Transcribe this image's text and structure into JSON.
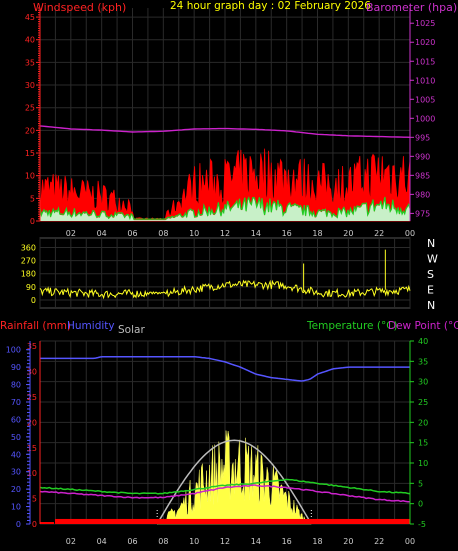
{
  "chart_data": [
    {
      "type": "line",
      "title": "24 hour graph day : 02 February 2026",
      "ylabel_left": "Windspeed (kph)",
      "ylabel_right": "Barometer (hpa)",
      "x_ticks": [
        "02",
        "04",
        "06",
        "08",
        "10",
        "12",
        "14",
        "16",
        "18",
        "20",
        "22",
        "00"
      ],
      "y_left_ticks": [
        0,
        5,
        10,
        15,
        20,
        25,
        30,
        35,
        40,
        45
      ],
      "ylim_left": [
        0,
        47
      ],
      "y_right_ticks": [
        975,
        980,
        985,
        990,
        995,
        1000,
        1005,
        1010,
        1015,
        1020,
        1025
      ],
      "ylim_right": [
        973,
        1029
      ],
      "grid": true,
      "colors": {
        "gust": "#ff0000",
        "wind": "#22cc22",
        "wind_fill": "#c8f0c8",
        "barometer": "#cc22cc",
        "text_left": "#ff2222",
        "text_right": "#cc33cc",
        "title": "#ffff00"
      },
      "series": [
        {
          "name": "Barometer",
          "axis": "right",
          "x": [
            0,
            2,
            4,
            6,
            8,
            10,
            12,
            14,
            16,
            18,
            20,
            22,
            24
          ],
          "values": [
            998.0,
            997.2,
            996.9,
            996.4,
            996.6,
            997.2,
            997.3,
            997.1,
            996.7,
            995.8,
            995.4,
            995.2,
            995.0
          ]
        },
        {
          "name": "Gust",
          "axis": "left",
          "x": [
            0,
            2,
            4,
            6,
            8,
            10,
            12,
            14,
            16,
            18,
            20,
            22,
            24
          ],
          "values": [
            8,
            7,
            6,
            4,
            0.5,
            9,
            10,
            12,
            11,
            9,
            9,
            12,
            11
          ]
        },
        {
          "name": "Wind",
          "axis": "left",
          "x": [
            0,
            2,
            4,
            6,
            8,
            10,
            12,
            14,
            16,
            18,
            20,
            22,
            24
          ],
          "values": [
            2,
            2,
            1.5,
            1,
            0.2,
            2,
            3,
            4,
            3,
            2,
            2,
            4,
            3
          ]
        }
      ]
    },
    {
      "type": "scatter",
      "ylabel_left": "",
      "y_left_ticks": [
        0,
        90,
        180,
        270,
        360
      ],
      "ylim": [
        0,
        370
      ],
      "compass_right": [
        "N",
        "W",
        "S",
        "E",
        "N"
      ],
      "x_ticks": [
        "02",
        "04",
        "06",
        "08",
        "10",
        "12",
        "14",
        "16",
        "18",
        "20",
        "22",
        "00"
      ],
      "colors": {
        "direction": "#ffff22",
        "compass": "#ffffff"
      },
      "series": [
        {
          "name": "Wind Direction",
          "x": [
            0,
            2,
            4,
            6,
            8,
            10,
            12,
            14,
            16,
            18,
            20,
            22,
            24
          ],
          "values": [
            60,
            50,
            40,
            45,
            40,
            75,
            105,
            105,
            100,
            50,
            45,
            60,
            70
          ]
        }
      ]
    },
    {
      "type": "line",
      "labels": {
        "rainfall": "Rainfall (mm)",
        "humidity": "Humidity",
        "solar": "Solar",
        "temperature": "Temperature (°C)",
        "dewpoint": "Dew Point (°C)"
      },
      "y_humidity_ticks": [
        0,
        10,
        20,
        30,
        40,
        50,
        60,
        70,
        80,
        90,
        100
      ],
      "y_rain_ticks": [
        0,
        5,
        10,
        15,
        20,
        25,
        30,
        35
      ],
      "y_temp_ticks": [
        -5,
        0,
        5,
        10,
        15,
        20,
        25,
        30,
        35,
        40
      ],
      "ylim_humidity": [
        0,
        105
      ],
      "ylim_temp": [
        -5,
        40
      ],
      "x_ticks": [
        "02",
        "04",
        "06",
        "08",
        "10",
        "12",
        "14",
        "16",
        "18",
        "20",
        "22",
        "00"
      ],
      "grid": true,
      "colors": {
        "rainfall": "#ff2222",
        "humidity": "#5555ff",
        "solar": "#bbbbbb",
        "temperature": "#22cc22",
        "dewpoint": "#cc22cc",
        "solar_bars": "#ffff44",
        "rain_bar": "#ff0000"
      },
      "series": [
        {
          "name": "Humidity",
          "x": [
            0,
            2,
            3.5,
            4,
            6,
            8,
            10,
            11,
            12,
            13,
            14,
            15,
            16,
            17,
            17.5,
            18,
            19,
            20,
            22,
            24
          ],
          "values": [
            95,
            95,
            95,
            96,
            96,
            96,
            96,
            95,
            93,
            90,
            86,
            84,
            83,
            82,
            83,
            86,
            89,
            90,
            90,
            90
          ]
        },
        {
          "name": "Temperature",
          "x": [
            0,
            2,
            4,
            6,
            8,
            10,
            12,
            14,
            16,
            18,
            20,
            22,
            24
          ],
          "values": [
            4,
            3.5,
            3,
            2.5,
            2.5,
            3.5,
            4.5,
            5,
            6,
            5,
            4,
            3,
            2.5
          ]
        },
        {
          "name": "Dew Point",
          "x": [
            0,
            2,
            4,
            6,
            8,
            10,
            12,
            14,
            16,
            18,
            20,
            22,
            24
          ],
          "values": [
            3,
            2.5,
            2,
            1.5,
            1.5,
            2.5,
            4,
            4.5,
            4,
            3,
            2,
            1,
            0.5
          ]
        },
        {
          "name": "Solar",
          "x": [
            7.6,
            9,
            10,
            11,
            12,
            13,
            14,
            15,
            16,
            17,
            17.6
          ],
          "values": [
            0,
            12,
            26,
            40,
            48,
            48,
            42,
            33,
            20,
            6,
            0
          ]
        },
        {
          "name": "Rainfall",
          "x": [
            0,
            24
          ],
          "values": [
            0.6,
            0.6
          ]
        }
      ]
    }
  ]
}
